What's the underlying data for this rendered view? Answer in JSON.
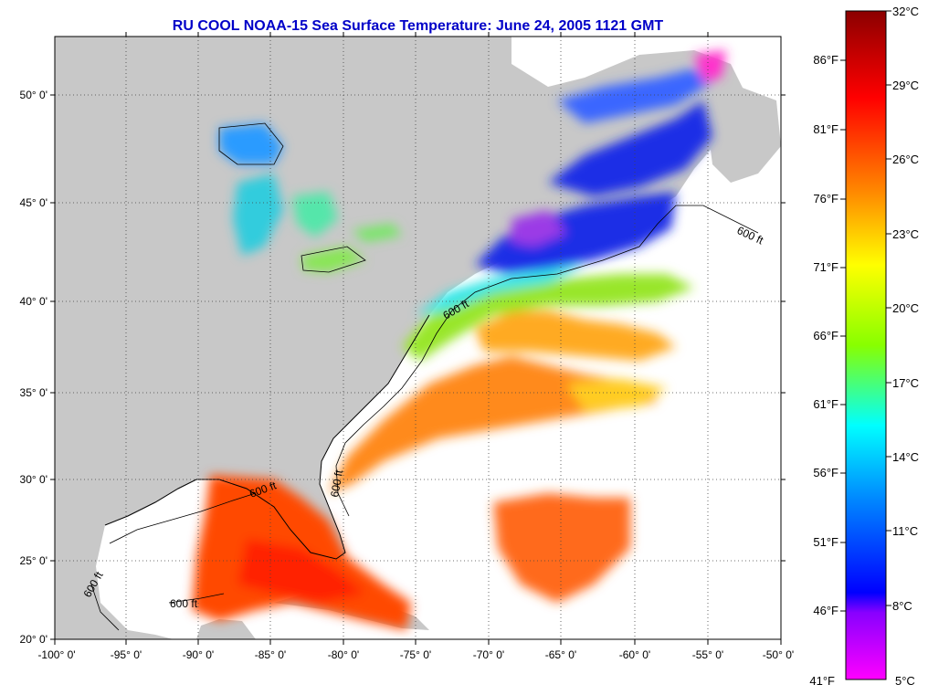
{
  "title": "RU COOL  NOAA-15  Sea Surface Temperature:  June 24, 2005 1121 GMT",
  "map": {
    "lat_ticks": [
      "50° 0'",
      "45° 0'",
      "40° 0'",
      "35° 0'",
      "30° 0'",
      "25° 0'",
      "20° 0'"
    ],
    "lon_ticks": [
      "-100° 0'",
      "-95° 0'",
      "-90° 0'",
      "-85° 0'",
      "-80° 0'",
      "-75° 0'",
      "-70° 0'",
      "-65° 0'",
      "-60° 0'",
      "-55° 0'",
      "-50° 0'"
    ],
    "isobath_labels": [
      "600 ft",
      "600 ft",
      "600 ft",
      "600 ft",
      "600 ft",
      "600 ft"
    ],
    "colors": {
      "land": "#c8c8c8",
      "ocean_nodata": "#ffffff",
      "grid": "#444444"
    }
  },
  "colorbar": {
    "celsius": [
      "32°C",
      "29°C",
      "26°C",
      "23°C",
      "20°C",
      "17°C",
      "14°C",
      "11°C",
      "8°C",
      "5°C"
    ],
    "fahrenheit": [
      "86°F",
      "81°F",
      "76°F",
      "71°F",
      "66°F",
      "61°F",
      "56°F",
      "51°F",
      "46°F",
      "41°F"
    ],
    "gradient_stops": [
      "#8b0000",
      "#ff0000",
      "#ff8800",
      "#ffff00",
      "#88ff00",
      "#00ffff",
      "#0088ff",
      "#0000ff",
      "#8800ff",
      "#ff00ff"
    ]
  }
}
